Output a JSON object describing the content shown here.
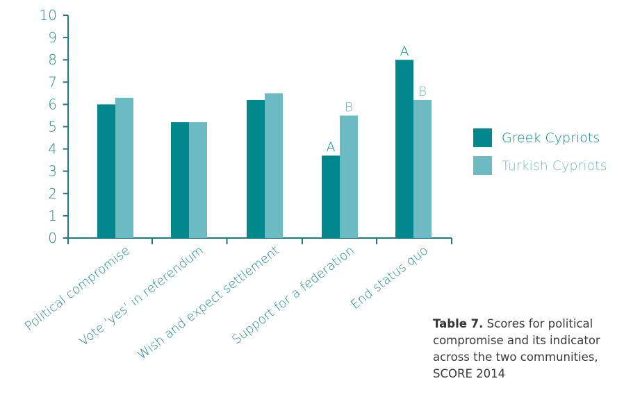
{
  "chart_data": {
    "type": "bar",
    "categories": [
      "Political compromise",
      "Vote ‘yes’ in referendum",
      "Wish and expect settlement",
      "Support for a federation",
      "End status quo"
    ],
    "series": [
      {
        "name": "Greek Cypriots",
        "values": [
          6.0,
          5.2,
          6.2,
          3.7,
          8.0
        ],
        "labels": [
          "",
          "",
          "",
          "A",
          "A"
        ]
      },
      {
        "name": "Turkish Cypriots",
        "values": [
          6.3,
          5.2,
          6.5,
          5.5,
          6.2
        ],
        "labels": [
          "",
          "",
          "",
          "B",
          "B"
        ]
      }
    ],
    "yticks": [
      "0",
      "1",
      "2",
      "3",
      "4",
      "5",
      "6",
      "7",
      "8",
      "9",
      "10"
    ],
    "ylim": [
      0,
      10
    ],
    "legend_position": "right",
    "grid": false
  },
  "colors": {
    "greek": "#00888c",
    "turkish": "#6dbbc2",
    "axis": "#1a7a86",
    "text": "#1a8a92"
  },
  "caption": {
    "title": "Table 7.",
    "text": "Scores for political compromise and its indicator across the two communities, SCORE 2014"
  }
}
